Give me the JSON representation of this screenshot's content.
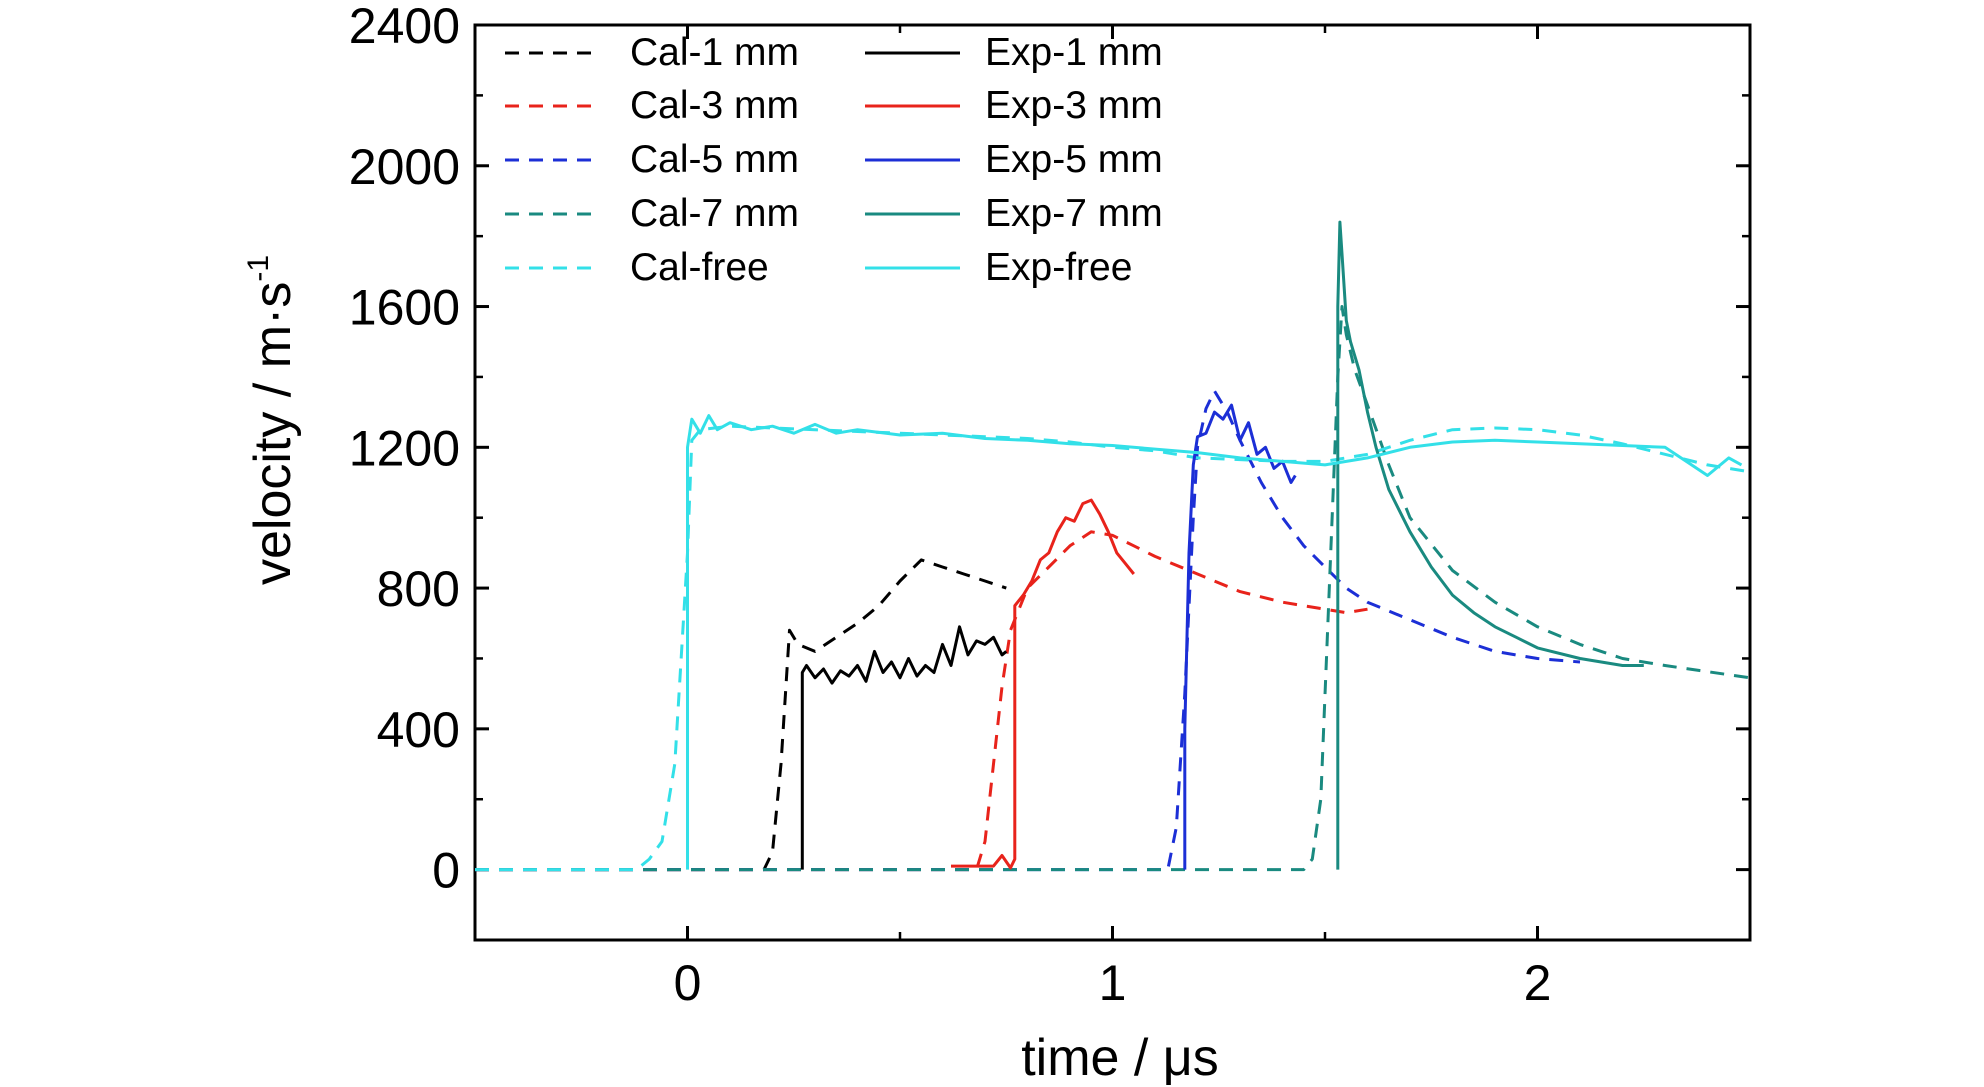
{
  "chart_data": {
    "type": "line",
    "xlabel": "time / μs",
    "ylabel": "velocity / m·s",
    "ylabel_superscript": "-1",
    "xlim": [
      -0.5,
      2.5
    ],
    "ylim": [
      -200,
      2400
    ],
    "x_ticks": [
      0,
      1,
      2
    ],
    "x_tick_labels": [
      "0",
      "1",
      "2"
    ],
    "y_ticks": [
      0,
      400,
      800,
      1200,
      1600,
      2000,
      2400
    ],
    "y_tick_labels": [
      "0",
      "400",
      "800",
      "1200",
      "1600",
      "2000",
      "2400"
    ],
    "grid": false,
    "legend_position": "top-left",
    "series": [
      {
        "name": "Cal-1 mm",
        "color": "#000000",
        "style": "dashed",
        "x": [
          -0.5,
          0.18,
          0.2,
          0.22,
          0.24,
          0.26,
          0.3,
          0.35,
          0.4,
          0.45,
          0.5,
          0.55,
          0.6,
          0.65,
          0.7,
          0.75
        ],
        "y": [
          0,
          0,
          50,
          300,
          680,
          640,
          620,
          660,
          700,
          750,
          820,
          880,
          860,
          840,
          820,
          800
        ]
      },
      {
        "name": "Cal-3 mm",
        "color": "#e8231b",
        "style": "dashed",
        "x": [
          -0.5,
          0.68,
          0.7,
          0.72,
          0.74,
          0.76,
          0.8,
          0.85,
          0.9,
          0.95,
          1.0,
          1.05,
          1.1,
          1.2,
          1.3,
          1.4,
          1.5,
          1.55,
          1.6
        ],
        "y": [
          0,
          0,
          80,
          300,
          520,
          680,
          800,
          860,
          920,
          960,
          950,
          920,
          890,
          840,
          790,
          760,
          740,
          730,
          740
        ]
      },
      {
        "name": "Cal-5 mm",
        "color": "#1c2fd6",
        "style": "dashed",
        "x": [
          -0.5,
          1.13,
          1.15,
          1.17,
          1.19,
          1.2,
          1.22,
          1.24,
          1.27,
          1.3,
          1.35,
          1.4,
          1.45,
          1.5,
          1.55,
          1.6,
          1.7,
          1.8,
          1.9,
          2.0,
          2.1
        ],
        "y": [
          0,
          0,
          120,
          500,
          1000,
          1200,
          1310,
          1360,
          1300,
          1220,
          1100,
          1000,
          920,
          860,
          800,
          760,
          710,
          660,
          620,
          600,
          590
        ]
      },
      {
        "name": "Cal-7 mm",
        "color": "#1a8a80",
        "style": "dashed",
        "x": [
          -0.5,
          1.45,
          1.47,
          1.49,
          1.51,
          1.53,
          1.54,
          1.55,
          1.57,
          1.6,
          1.65,
          1.7,
          1.8,
          1.9,
          2.0,
          2.1,
          2.2,
          2.3,
          2.5
        ],
        "y": [
          0,
          0,
          30,
          200,
          800,
          1400,
          1600,
          1520,
          1420,
          1320,
          1150,
          1000,
          850,
          760,
          690,
          640,
          600,
          580,
          545
        ]
      },
      {
        "name": "Cal-free",
        "color": "#33e0e8",
        "style": "dashed",
        "x": [
          -0.5,
          -0.12,
          -0.09,
          -0.06,
          -0.03,
          0.0,
          0.01,
          0.03,
          0.1,
          0.2,
          0.3,
          0.4,
          0.5,
          0.6,
          0.7,
          0.8,
          0.9,
          1.0,
          1.1,
          1.2,
          1.3,
          1.4,
          1.5,
          1.6,
          1.7,
          1.8,
          1.9,
          2.0,
          2.1,
          2.2,
          2.3,
          2.4,
          2.5
        ],
        "y": [
          0,
          0,
          30,
          80,
          300,
          900,
          1220,
          1250,
          1260,
          1255,
          1250,
          1245,
          1240,
          1235,
          1230,
          1225,
          1215,
          1200,
          1190,
          1170,
          1165,
          1160,
          1160,
          1180,
          1220,
          1250,
          1255,
          1250,
          1235,
          1210,
          1180,
          1150,
          1130
        ]
      },
      {
        "name": "Exp-1 mm",
        "color": "#000000",
        "style": "solid",
        "x": [
          0.27,
          0.27,
          0.28,
          0.3,
          0.32,
          0.34,
          0.36,
          0.38,
          0.4,
          0.42,
          0.44,
          0.46,
          0.48,
          0.5,
          0.52,
          0.54,
          0.56,
          0.58,
          0.6,
          0.62,
          0.64,
          0.66,
          0.68,
          0.7,
          0.72,
          0.74,
          0.75
        ],
        "y": [
          0,
          560,
          580,
          545,
          570,
          530,
          565,
          550,
          580,
          535,
          620,
          560,
          590,
          545,
          600,
          550,
          580,
          560,
          640,
          580,
          690,
          610,
          650,
          640,
          660,
          610,
          620
        ]
      },
      {
        "name": "Exp-3 mm",
        "color": "#e8231b",
        "style": "solid",
        "x": [
          0.62,
          0.72,
          0.74,
          0.76,
          0.77,
          0.77,
          0.79,
          0.81,
          0.83,
          0.85,
          0.87,
          0.89,
          0.91,
          0.93,
          0.95,
          0.97,
          0.99,
          1.01,
          1.03,
          1.05
        ],
        "y": [
          10,
          10,
          40,
          5,
          30,
          750,
          780,
          820,
          880,
          900,
          960,
          1000,
          990,
          1040,
          1050,
          1010,
          960,
          900,
          870,
          840
        ]
      },
      {
        "name": "Exp-5 mm",
        "color": "#1c2fd6",
        "style": "solid",
        "x": [
          1.17,
          1.17,
          1.18,
          1.19,
          1.2,
          1.22,
          1.24,
          1.26,
          1.28,
          1.3,
          1.32,
          1.34,
          1.36,
          1.38,
          1.4,
          1.42,
          1.43
        ],
        "y": [
          0,
          400,
          900,
          1150,
          1230,
          1240,
          1300,
          1280,
          1320,
          1220,
          1270,
          1180,
          1200,
          1140,
          1160,
          1100,
          1120
        ]
      },
      {
        "name": "Exp-7 mm",
        "color": "#1a8a80",
        "style": "solid",
        "x": [
          1.53,
          1.53,
          1.535,
          1.54,
          1.55,
          1.56,
          1.58,
          1.6,
          1.62,
          1.65,
          1.7,
          1.75,
          1.8,
          1.85,
          1.9,
          1.95,
          2.0,
          2.1,
          2.2,
          2.25
        ],
        "y": [
          0,
          1600,
          1840,
          1750,
          1560,
          1500,
          1420,
          1300,
          1200,
          1080,
          960,
          860,
          780,
          730,
          690,
          660,
          630,
          600,
          580,
          580
        ]
      },
      {
        "name": "Exp-free",
        "color": "#33e0e8",
        "style": "solid",
        "x": [
          0.0,
          0.0,
          0.01,
          0.03,
          0.05,
          0.07,
          0.1,
          0.15,
          0.2,
          0.25,
          0.3,
          0.35,
          0.4,
          0.5,
          0.6,
          0.7,
          0.8,
          0.9,
          1.0,
          1.1,
          1.2,
          1.3,
          1.4,
          1.5,
          1.6,
          1.7,
          1.8,
          1.9,
          2.0,
          2.1,
          2.2,
          2.3,
          2.35,
          2.4,
          2.45,
          2.48
        ],
        "y": [
          0,
          1200,
          1280,
          1240,
          1290,
          1250,
          1270,
          1250,
          1260,
          1240,
          1265,
          1240,
          1250,
          1235,
          1240,
          1225,
          1220,
          1210,
          1205,
          1195,
          1185,
          1170,
          1160,
          1150,
          1170,
          1200,
          1215,
          1220,
          1215,
          1210,
          1205,
          1200,
          1160,
          1120,
          1170,
          1150
        ]
      }
    ]
  }
}
